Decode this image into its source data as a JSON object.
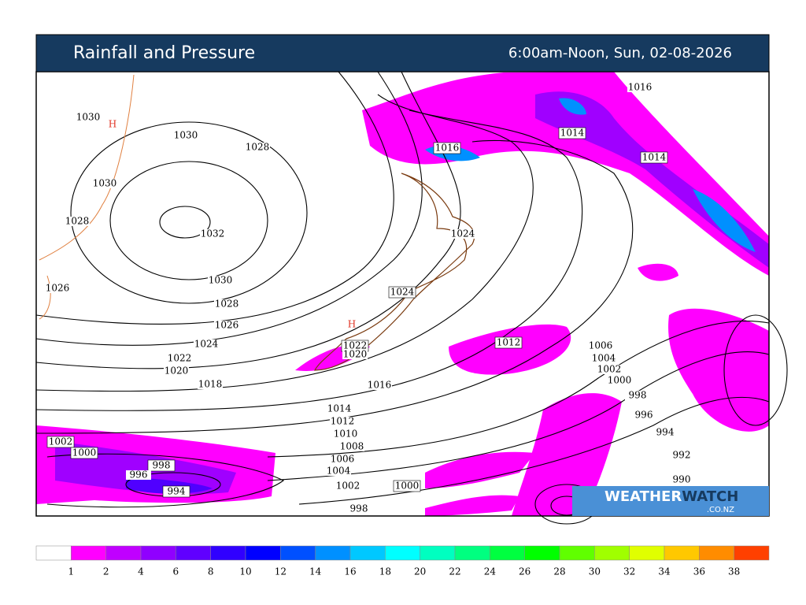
{
  "header": {
    "title": "Rainfall and Pressure",
    "time": "6:00am-Noon, Sun, 02-08-2026"
  },
  "isobar_labels": [
    1030,
    1030,
    1028,
    1030,
    1028,
    1032,
    1026,
    1030,
    1028,
    1026,
    1024,
    1022,
    1020,
    1018,
    1016,
    1014,
    1016,
    1014,
    1024,
    1024,
    1022,
    1020,
    1016,
    1012,
    1006,
    1004,
    1002,
    1000,
    998,
    996,
    994,
    992,
    990,
    1014,
    1012,
    1010,
    1008,
    1006,
    1004,
    1002,
    1000,
    998,
    1002,
    1000,
    998,
    996,
    994
  ],
  "high_labels": [
    "H",
    "H"
  ],
  "logo": {
    "part1": "WEATHER",
    "part2": "WATCH",
    "domain": ".CO.NZ"
  },
  "legend": {
    "colors": [
      "#ffffff",
      "#ff00ff",
      "#c000ff",
      "#9000ff",
      "#6000ff",
      "#3000ff",
      "#0000ff",
      "#0050ff",
      "#0090ff",
      "#00c8ff",
      "#00ffff",
      "#00ffc0",
      "#00ff80",
      "#00ff40",
      "#00ff00",
      "#60ff00",
      "#a0ff00",
      "#e0ff00",
      "#ffc800",
      "#ff8c00",
      "#ff4000"
    ],
    "ticks": [
      1,
      2,
      4,
      6,
      8,
      10,
      12,
      14,
      16,
      18,
      20,
      22,
      24,
      26,
      28,
      30,
      32,
      34,
      36,
      38
    ]
  }
}
